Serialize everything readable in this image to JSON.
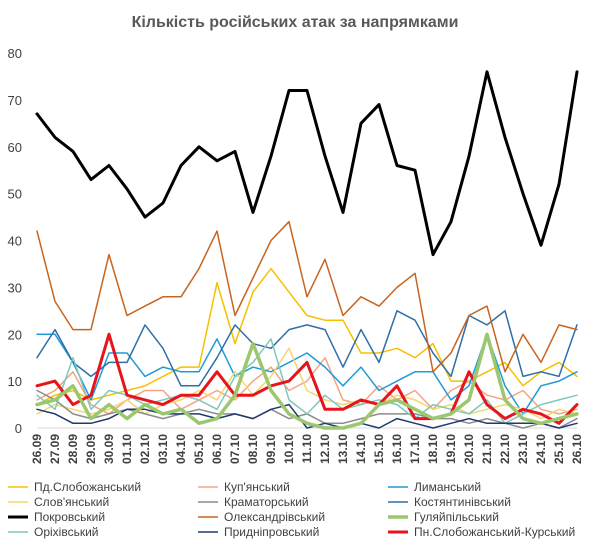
{
  "chart_data": {
    "type": "line",
    "title": "Кількість російських атак за напрямками",
    "xlabel": "",
    "ylabel": "",
    "ylim": [
      0,
      80
    ],
    "yticks": [
      0,
      10,
      20,
      30,
      40,
      50,
      60,
      70,
      80
    ],
    "grid": false,
    "legend_position": "bottom",
    "categories": [
      "26.09",
      "27.09",
      "28.09",
      "29.09",
      "30.09",
      "01.10",
      "02.10",
      "03.10",
      "04.10",
      "05.10",
      "06.10",
      "07.10",
      "08.10",
      "09.10",
      "10.10",
      "11.10",
      "12.10",
      "13.10",
      "14.10",
      "15.10",
      "16.10",
      "17.10",
      "18.10",
      "19.10",
      "20.10",
      "21.10",
      "22.10",
      "23.10",
      "24.10",
      "25.10",
      "26.10"
    ],
    "series": [
      {
        "name": "Пд.Слобожанський",
        "color": "#F5C000",
        "width": 1.5,
        "values": [
          5,
          7,
          8,
          6,
          7,
          8,
          9,
          11,
          13,
          13,
          31,
          18,
          29,
          34,
          29,
          24,
          23,
          23,
          16,
          16,
          17,
          15,
          18,
          10,
          10,
          12,
          14,
          9,
          12,
          14,
          11
        ]
      },
      {
        "name": "Куп'янський",
        "color": "#F4A582",
        "width": 1.5,
        "values": [
          6,
          8,
          12,
          5,
          3,
          6,
          8,
          8,
          4,
          6,
          8,
          6,
          10,
          13,
          8,
          10,
          15,
          6,
          5,
          9,
          6,
          8,
          4,
          8,
          10,
          7,
          6,
          8,
          4,
          3,
          4
        ]
      },
      {
        "name": "Лиманський",
        "color": "#1F9BD8",
        "width": 1.5,
        "values": [
          20,
          20,
          14,
          6,
          16,
          16,
          11,
          13,
          12,
          12,
          19,
          11,
          13,
          12,
          14,
          16,
          13,
          9,
          13,
          8,
          10,
          12,
          12,
          6,
          9,
          20,
          9,
          3,
          9,
          10,
          12
        ]
      },
      {
        "name": "Слов'янський",
        "color": "#F5D76E",
        "width": 1.5,
        "values": [
          3,
          5,
          4,
          3,
          4,
          6,
          3,
          5,
          6,
          8,
          6,
          12,
          7,
          11,
          17,
          8,
          6,
          5,
          6,
          5,
          7,
          6,
          4,
          5,
          3,
          4,
          5,
          4,
          2,
          4,
          3
        ]
      },
      {
        "name": "Краматорський",
        "color": "#8C8C8C",
        "width": 1.5,
        "values": [
          8,
          6,
          3,
          2,
          3,
          4,
          3,
          2,
          3,
          4,
          3,
          3,
          2,
          4,
          2,
          3,
          1,
          1,
          2,
          3,
          3,
          3,
          2,
          2,
          1,
          2,
          1,
          0,
          1,
          0,
          2
        ]
      },
      {
        "name": "Костянтинівський",
        "color": "#2E6FA8",
        "width": 1.5,
        "values": [
          15,
          21,
          14,
          11,
          14,
          14,
          22,
          17,
          9,
          9,
          15,
          22,
          18,
          17,
          21,
          22,
          21,
          13,
          21,
          14,
          25,
          23,
          16,
          11,
          24,
          22,
          25,
          11,
          12,
          11,
          22
        ]
      },
      {
        "name": "Покровський",
        "color": "#000000",
        "width": 3,
        "values": [
          67,
          62,
          59,
          53,
          56,
          51,
          45,
          48,
          56,
          60,
          57,
          59,
          46,
          58,
          72,
          72,
          58,
          46,
          65,
          69,
          56,
          55,
          37,
          44,
          58,
          76,
          62,
          50,
          39,
          52,
          76
        ]
      },
      {
        "name": "Олександрівський",
        "color": "#C8641E",
        "width": 1.5,
        "values": [
          42,
          27,
          21,
          21,
          37,
          24,
          26,
          28,
          28,
          34,
          42,
          24,
          32,
          40,
          44,
          28,
          36,
          24,
          28,
          26,
          30,
          33,
          12,
          16,
          24,
          26,
          12,
          20,
          14,
          22,
          21
        ]
      },
      {
        "name": "Гуляйпільський",
        "color": "#9BC86E",
        "width": 3.5,
        "values": [
          5,
          6,
          9,
          2,
          5,
          2,
          5,
          3,
          4,
          1,
          2,
          7,
          18,
          8,
          3,
          1,
          0,
          0,
          1,
          5,
          6,
          4,
          2,
          3,
          6,
          20,
          6,
          2,
          1,
          2,
          3
        ]
      },
      {
        "name": "Оріхівський",
        "color": "#7EC8BE",
        "width": 1.5,
        "values": [
          7,
          4,
          15,
          4,
          8,
          7,
          5,
          6,
          7,
          6,
          4,
          11,
          14,
          19,
          6,
          3,
          7,
          4,
          5,
          6,
          5,
          2,
          5,
          4,
          3,
          6,
          1,
          3,
          5,
          6,
          7
        ]
      },
      {
        "name": "Придніпровський",
        "color": "#203A6E",
        "width": 1.5,
        "values": [
          4,
          3,
          1,
          1,
          2,
          4,
          4,
          3,
          3,
          3,
          2,
          3,
          2,
          4,
          5,
          0,
          1,
          0,
          1,
          0,
          2,
          1,
          0,
          1,
          2,
          1,
          1,
          1,
          1,
          0,
          1
        ]
      },
      {
        "name": "Пн.Слобожанський-Курський",
        "color": "#E8141C",
        "width": 3,
        "values": [
          9,
          10,
          5,
          7,
          20,
          7,
          6,
          5,
          7,
          7,
          12,
          7,
          7,
          9,
          10,
          14,
          4,
          4,
          6,
          5,
          9,
          2,
          2,
          3,
          12,
          5,
          2,
          4,
          3,
          1,
          5
        ]
      }
    ]
  }
}
